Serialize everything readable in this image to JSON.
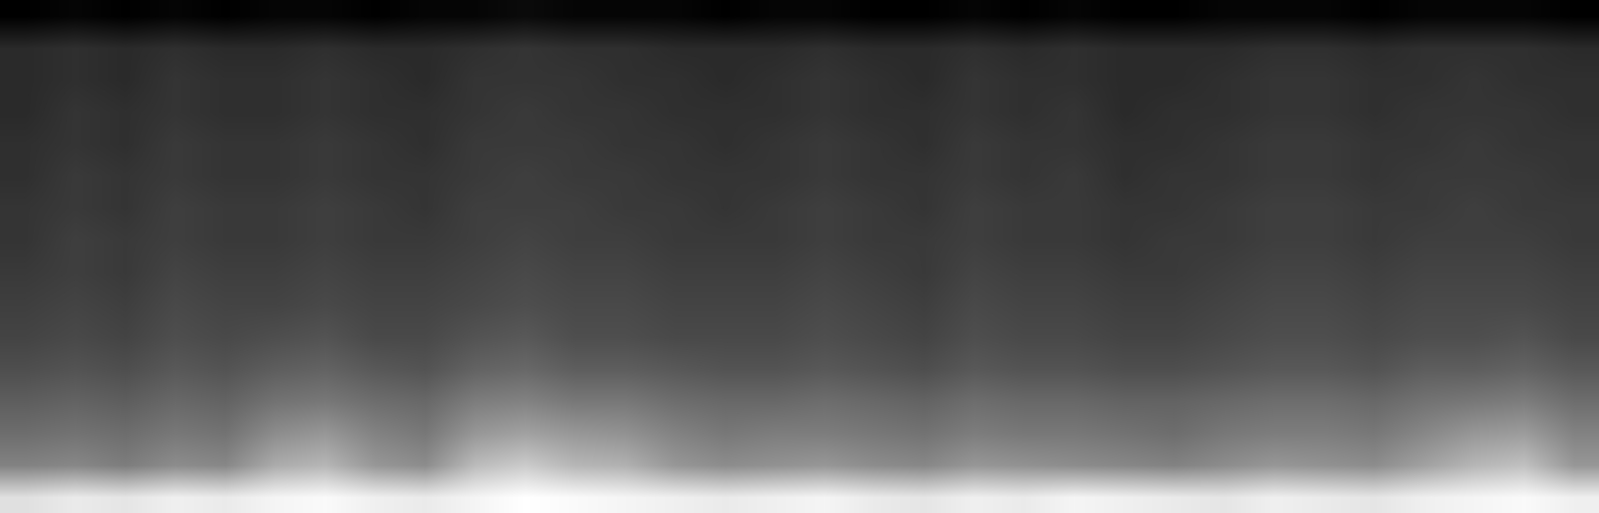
{
  "chart_data": {
    "type": "heatmap",
    "tick_labels": false,
    "grid": false,
    "cells": [
      [
        52,
        54,
        53,
        55,
        54,
        56,
        57,
        55,
        54,
        56,
        58,
        57,
        56,
        55,
        54,
        55,
        56,
        54,
        53,
        55,
        54,
        56,
        55,
        54,
        53,
        55,
        54,
        53,
        55,
        56,
        57,
        55
      ],
      [
        34,
        35,
        33,
        36,
        35,
        42,
        44,
        38,
        36,
        45,
        48,
        44,
        43,
        38,
        36,
        37,
        38,
        36,
        35,
        38,
        37,
        36,
        35,
        34,
        36,
        38,
        37,
        36,
        40,
        44,
        46,
        38
      ],
      [
        30,
        31,
        30,
        32,
        31,
        36,
        38,
        34,
        32,
        38,
        40,
        38,
        37,
        34,
        32,
        33,
        33,
        32,
        31,
        33,
        32,
        32,
        31,
        30,
        32,
        33,
        33,
        32,
        35,
        38,
        39,
        34
      ],
      [
        27,
        28,
        27,
        29,
        28,
        31,
        32,
        30,
        29,
        33,
        34,
        32,
        32,
        30,
        29,
        29,
        30,
        29,
        28,
        30,
        29,
        29,
        28,
        28,
        29,
        30,
        30,
        29,
        31,
        32,
        33,
        30
      ],
      [
        24,
        25,
        24,
        26,
        25,
        27,
        28,
        26,
        25,
        28,
        29,
        27,
        27,
        26,
        25,
        25,
        26,
        25,
        24,
        26,
        25,
        25,
        24,
        24,
        25,
        26,
        26,
        25,
        27,
        27,
        28,
        26
      ],
      [
        22,
        23,
        22,
        24,
        23,
        24,
        25,
        23,
        23,
        25,
        26,
        24,
        24,
        23,
        23,
        23,
        24,
        23,
        22,
        24,
        23,
        23,
        22,
        22,
        23,
        24,
        24,
        23,
        24,
        24,
        25,
        23
      ],
      [
        21,
        22,
        21,
        23,
        22,
        22,
        23,
        22,
        22,
        23,
        24,
        23,
        23,
        22,
        22,
        22,
        23,
        22,
        21,
        23,
        22,
        22,
        21,
        21,
        22,
        23,
        23,
        22,
        23,
        23,
        23,
        22
      ],
      [
        20,
        21,
        20,
        22,
        21,
        21,
        22,
        21,
        21,
        22,
        23,
        22,
        22,
        21,
        21,
        21,
        22,
        21,
        20,
        22,
        21,
        21,
        20,
        20,
        21,
        22,
        22,
        21,
        22,
        22,
        22,
        21
      ],
      [
        19,
        21,
        20,
        21,
        20,
        20,
        21,
        20,
        20,
        21,
        22,
        21,
        21,
        20,
        20,
        20,
        21,
        20,
        20,
        21,
        20,
        20,
        19,
        20,
        20,
        21,
        21,
        20,
        21,
        21,
        21,
        20
      ],
      [
        19,
        20,
        19,
        21,
        20,
        20,
        21,
        20,
        19,
        21,
        21,
        21,
        20,
        20,
        19,
        20,
        21,
        20,
        19,
        21,
        20,
        20,
        19,
        19,
        20,
        21,
        21,
        20,
        20,
        21,
        20,
        20
      ],
      [
        18,
        20,
        19,
        20,
        19,
        19,
        20,
        19,
        19,
        20,
        21,
        20,
        20,
        19,
        19,
        19,
        20,
        19,
        19,
        20,
        19,
        20,
        18,
        19,
        19,
        20,
        20,
        19,
        20,
        20,
        20,
        19
      ],
      [
        18,
        19,
        18,
        20,
        19,
        19,
        20,
        19,
        18,
        20,
        20,
        20,
        19,
        19,
        18,
        19,
        20,
        19,
        18,
        20,
        19,
        19,
        18,
        18,
        19,
        20,
        20,
        19,
        19,
        20,
        19,
        19
      ],
      [
        17,
        19,
        18,
        19,
        18,
        18,
        19,
        18,
        18,
        19,
        20,
        19,
        19,
        18,
        18,
        18,
        19,
        18,
        18,
        19,
        18,
        19,
        17,
        18,
        18,
        19,
        19,
        18,
        19,
        19,
        19,
        18
      ],
      [
        17,
        18,
        17,
        19,
        18,
        18,
        19,
        18,
        17,
        19,
        19,
        19,
        18,
        18,
        17,
        18,
        19,
        18,
        17,
        19,
        18,
        18,
        17,
        17,
        18,
        19,
        19,
        18,
        18,
        19,
        18,
        18
      ],
      [
        17,
        18,
        17,
        18,
        17,
        17,
        18,
        17,
        17,
        18,
        19,
        18,
        18,
        17,
        17,
        17,
        18,
        17,
        17,
        18,
        17,
        18,
        17,
        17,
        17,
        18,
        18,
        17,
        18,
        18,
        18,
        17
      ],
      [
        9,
        10,
        9,
        10,
        9,
        10,
        10,
        9,
        10,
        10,
        11,
        10,
        10,
        10,
        9,
        10,
        10,
        9,
        9,
        10,
        9,
        10,
        9,
        9,
        10,
        10,
        10,
        9,
        10,
        10,
        10,
        9
      ]
    ]
  }
}
